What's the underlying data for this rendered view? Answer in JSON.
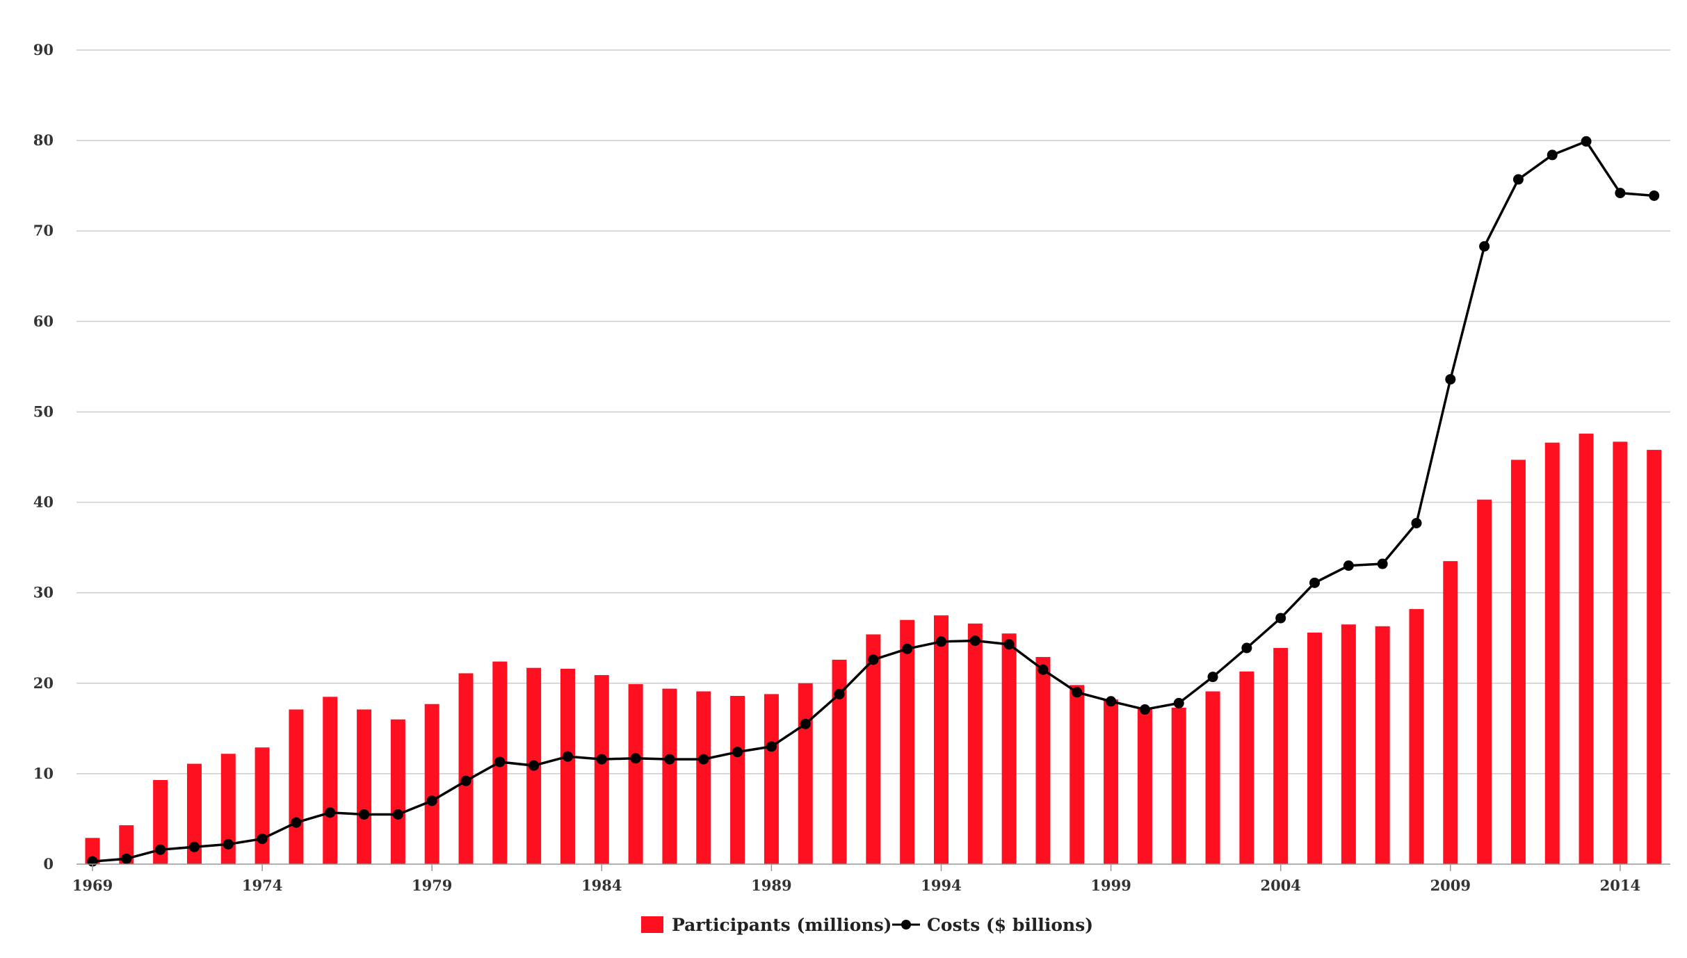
{
  "chart_data": {
    "type": "bar",
    "title": "",
    "xlabel": "",
    "ylabel": "",
    "ylim": [
      0,
      90
    ],
    "yticks": [
      0,
      10,
      20,
      30,
      40,
      50,
      60,
      70,
      80,
      90
    ],
    "xtick_labels": [
      "1969",
      "1974",
      "1979",
      "1984",
      "1989",
      "1994",
      "1999",
      "2004",
      "2009",
      "2014"
    ],
    "grid": true,
    "legend_position": "bottom-center",
    "categories": [
      "1969",
      "1970",
      "1971",
      "1972",
      "1973",
      "1974",
      "1975",
      "1976",
      "1977",
      "1978",
      "1979",
      "1980",
      "1981",
      "1982",
      "1983",
      "1984",
      "1985",
      "1986",
      "1987",
      "1988",
      "1989",
      "1990",
      "1991",
      "1992",
      "1993",
      "1994",
      "1995",
      "1996",
      "1997",
      "1998",
      "1999",
      "2000",
      "2001",
      "2002",
      "2003",
      "2004",
      "2005",
      "2006",
      "2007",
      "2008",
      "2009",
      "2010",
      "2011",
      "2012",
      "2013",
      "2014",
      "2015"
    ],
    "series": [
      {
        "name": "Participants (millions)",
        "kind": "bar",
        "color": "#ff1020",
        "values": [
          2.9,
          4.3,
          9.3,
          11.1,
          12.2,
          12.9,
          17.1,
          18.5,
          17.1,
          16.0,
          17.7,
          21.1,
          22.4,
          21.7,
          21.6,
          20.9,
          19.9,
          19.4,
          19.1,
          18.6,
          18.8,
          20.0,
          22.6,
          25.4,
          27.0,
          27.5,
          26.6,
          25.5,
          22.9,
          19.8,
          18.2,
          17.2,
          17.3,
          19.1,
          21.3,
          23.9,
          25.6,
          26.5,
          26.3,
          28.2,
          33.5,
          40.3,
          44.7,
          46.6,
          47.6,
          46.7,
          45.8
        ]
      },
      {
        "name": "Costs ($ billions)",
        "kind": "line",
        "color": "#000000",
        "values": [
          0.3,
          0.6,
          1.6,
          1.9,
          2.2,
          2.8,
          4.6,
          5.7,
          5.5,
          5.5,
          7.0,
          9.2,
          11.3,
          10.9,
          11.9,
          11.6,
          11.7,
          11.6,
          11.6,
          12.4,
          13.0,
          15.5,
          18.8,
          22.6,
          23.8,
          24.6,
          24.7,
          24.3,
          21.5,
          19.0,
          18.0,
          17.1,
          17.8,
          20.7,
          23.9,
          27.2,
          31.1,
          33.0,
          33.2,
          37.7,
          53.6,
          68.3,
          75.7,
          78.4,
          79.9,
          74.2,
          73.9
        ]
      }
    ]
  }
}
